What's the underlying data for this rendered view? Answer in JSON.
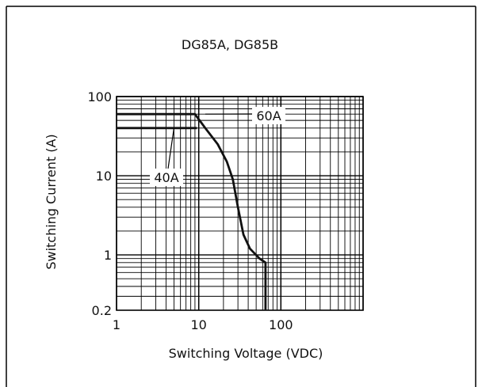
{
  "chart_data": {
    "type": "line",
    "title": "DG85A, DG85B",
    "xlabel": "Switching Voltage (VDC)",
    "ylabel": "Switching Current (A)",
    "xscale": "log",
    "yscale": "log",
    "xlim": [
      1,
      1000
    ],
    "ylim": [
      0.2,
      100
    ],
    "grid": true,
    "x_ticks": [
      {
        "value": 1,
        "label": "1"
      },
      {
        "value": 10,
        "label": "10"
      },
      {
        "value": 100,
        "label": "100"
      }
    ],
    "y_ticks": [
      {
        "value": 0.2,
        "label": "0.2"
      },
      {
        "value": 1,
        "label": "1"
      },
      {
        "value": 10,
        "label": "10"
      },
      {
        "value": 100,
        "label": "100"
      }
    ],
    "series": [
      {
        "label": "60A",
        "x": [
          1,
          9,
          12,
          17,
          22,
          26,
          30,
          35,
          42,
          55,
          65,
          65
        ],
        "y": [
          60,
          60,
          40,
          25,
          15,
          9,
          4,
          1.8,
          1.2,
          0.9,
          0.8,
          0.2
        ]
      },
      {
        "label": "40A",
        "x": [
          1,
          9.5
        ],
        "y": [
          40,
          40
        ]
      }
    ],
    "annotations": [
      {
        "text": "60A",
        "target_x": 12,
        "target_y": 60
      },
      {
        "text": "40A",
        "target_x": 5,
        "target_y": 40
      }
    ]
  }
}
